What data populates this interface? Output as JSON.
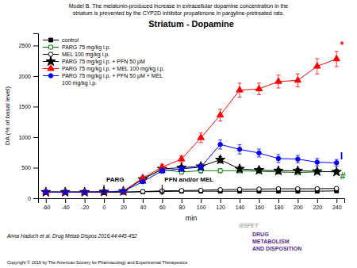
{
  "chart_data": {
    "type": "line",
    "title": "Striatum - Dopamine",
    "subtitle": [
      "Model B. The melatonin-produced increase in extracellular dopamine concentration in the",
      "striatum is prevented by the CYP2D inhibitor propafenone in pargyline-pretreated rats."
    ],
    "xlabel": "min",
    "ylabel": "DA (% of basal level)",
    "footer": [
      "Anna Haduch et al. Drug Metab Dispos 2016;44:445-452",
      "Copyright © 2016 by The American Society for Pharmacology and Experimental Therapeutics"
    ],
    "logo": [
      {
        "text": "ⓐSPET",
        "color": "#888888"
      },
      {
        "text": "DRUG\nMETABOLISM\nAND DISPOSITION",
        "color": "#5B2C8D"
      }
    ],
    "x": [
      -60,
      -40,
      -20,
      0,
      20,
      40,
      60,
      80,
      100,
      120,
      140,
      160,
      180,
      200,
      220,
      240
    ],
    "xlim": [
      -68,
      248
    ],
    "xticks": [
      -60,
      -40,
      -20,
      0,
      20,
      40,
      60,
      80,
      100,
      120,
      140,
      160,
      180,
      200,
      220,
      240
    ],
    "ylim": [
      0,
      2700
    ],
    "yticks": [
      0,
      500,
      1000,
      1500,
      2000,
      2500
    ],
    "grid": false,
    "legend": "upper left",
    "series": [
      {
        "name": "control",
        "color": "black",
        "marker": "square",
        "values": [
          100,
          100,
          100,
          100,
          100,
          105,
          110,
          115,
          115,
          115,
          115,
          115,
          115,
          115,
          115,
          120
        ],
        "errors": [
          8,
          8,
          8,
          8,
          8,
          10,
          10,
          10,
          10,
          10,
          10,
          10,
          10,
          10,
          10,
          10
        ]
      },
      {
        "name": "PARG 75 mg/kg i.p.",
        "color": "#008000",
        "marker": "square-open",
        "values": [
          100,
          100,
          100,
          105,
          110,
          320,
          470,
          430,
          450,
          450,
          450,
          440,
          430,
          420,
          430,
          440
        ],
        "errors": [
          8,
          8,
          8,
          10,
          12,
          28,
          38,
          32,
          38,
          32,
          32,
          28,
          28,
          28,
          28,
          32
        ]
      },
      {
        "name": "MEL 100 mg/kg i.p.",
        "color": "black",
        "marker": "circle-open",
        "values": [
          100,
          100,
          100,
          100,
          100,
          110,
          120,
          125,
          130,
          140,
          145,
          150,
          155,
          155,
          155,
          160
        ],
        "errors": [
          8,
          8,
          8,
          8,
          8,
          10,
          12,
          12,
          12,
          12,
          12,
          12,
          12,
          12,
          12,
          12
        ]
      },
      {
        "name": "PARG 75 mg/kg i.p. + PFN 50 μM",
        "color": "black",
        "marker": "star",
        "values": [
          100,
          100,
          100,
          105,
          115,
          310,
          480,
          500,
          520,
          630,
          480,
          460,
          450,
          450,
          440,
          430
        ],
        "errors": [
          8,
          8,
          8,
          10,
          12,
          28,
          38,
          38,
          42,
          50,
          42,
          38,
          38,
          38,
          32,
          32
        ]
      },
      {
        "name": "PARG 75 mg/kg i.p. + MEL 100 mg/kg i.p.",
        "color": "red",
        "marker": "triangle",
        "values": [
          100,
          100,
          100,
          105,
          115,
          330,
          510,
          640,
          990,
          1360,
          1770,
          1790,
          1910,
          1930,
          2160,
          2280
        ],
        "errors": [
          8,
          8,
          8,
          10,
          12,
          32,
          48,
          58,
          78,
          95,
          115,
          95,
          105,
          105,
          125,
          125
        ]
      },
      {
        "name": "PARG 75 mg/kg i.p. + PFN 50 μM + MEL\n100 mg/kg i.p.",
        "color": "blue",
        "marker": "circle",
        "values": [
          100,
          100,
          100,
          105,
          115,
          270,
          450,
          480,
          510,
          880,
          800,
          740,
          650,
          640,
          590,
          580
        ],
        "errors": [
          8,
          8,
          8,
          10,
          12,
          28,
          42,
          42,
          48,
          75,
          75,
          65,
          65,
          60,
          60,
          55
        ]
      }
    ],
    "annotations": [
      {
        "text": "PARG",
        "x": 0,
        "y": 60,
        "y_from": 220
      },
      {
        "text": "PFN and/or MEL",
        "x": 60,
        "y": 60,
        "y_from": 220
      },
      {
        "text": "*",
        "x": 242,
        "y": 2490,
        "color": "red"
      },
      {
        "text": "#",
        "x": 242,
        "y": 355,
        "color": "#008000"
      },
      {
        "text": "Ӏ",
        "x": 242,
        "y": 680,
        "color": "blue"
      }
    ]
  }
}
